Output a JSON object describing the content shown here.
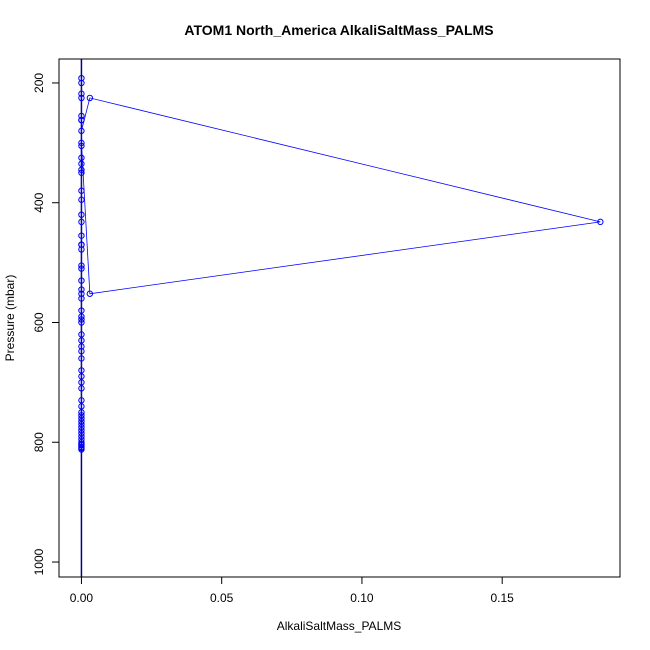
{
  "chart_data": {
    "type": "line",
    "title": "ATOM1 North_America AlkaliSaltMass_PALMS",
    "xlabel": "AlkaliSaltMass_PALMS",
    "ylabel": "Pressure (mbar)",
    "xlim": [
      -0.008,
      0.192
    ],
    "ylim": [
      1025,
      160
    ],
    "y_reversed": true,
    "x_ticks": [
      0.0,
      0.05,
      0.1,
      0.15
    ],
    "x_tick_labels": [
      "0.00",
      "0.05",
      "0.10",
      "0.15"
    ],
    "y_ticks": [
      200,
      400,
      600,
      800,
      1000
    ],
    "y_tick_labels": [
      "200",
      "400",
      "600",
      "800",
      "1000"
    ],
    "grid": false,
    "legend": "none",
    "marker": "open-circle",
    "color": "#0000ff",
    "vertical_line": {
      "x": 0.0,
      "color": "#00008b"
    },
    "series": [
      {
        "x": [
          0,
          0,
          0,
          0,
          0,
          0,
          0,
          0.003,
          0.185,
          0.003,
          0,
          0,
          0,
          0,
          0,
          0,
          0,
          0,
          0,
          0,
          0,
          0,
          0,
          0,
          0,
          0,
          0,
          0,
          0,
          0,
          0,
          0,
          0,
          0,
          0,
          0,
          0,
          0,
          0,
          0,
          0,
          0,
          0,
          0,
          0,
          0,
          0,
          0,
          0,
          0,
          0,
          0,
          0,
          0,
          0,
          0,
          0,
          0,
          0,
          0,
          0,
          0
        ],
        "y": [
          192,
          200,
          218,
          225,
          255,
          262,
          280,
          225,
          432,
          552,
          300,
          305,
          325,
          335,
          345,
          380,
          395,
          420,
          432,
          455,
          470,
          478,
          505,
          510,
          530,
          545,
          552,
          560,
          580,
          590,
          595,
          600,
          620,
          630,
          640,
          648,
          660,
          680,
          690,
          700,
          710,
          730,
          740,
          750,
          755,
          760,
          765,
          770,
          775,
          780,
          785,
          790,
          795,
          800,
          803,
          805,
          808,
          810,
          812,
          470,
          350,
          262
        ]
      }
    ]
  }
}
